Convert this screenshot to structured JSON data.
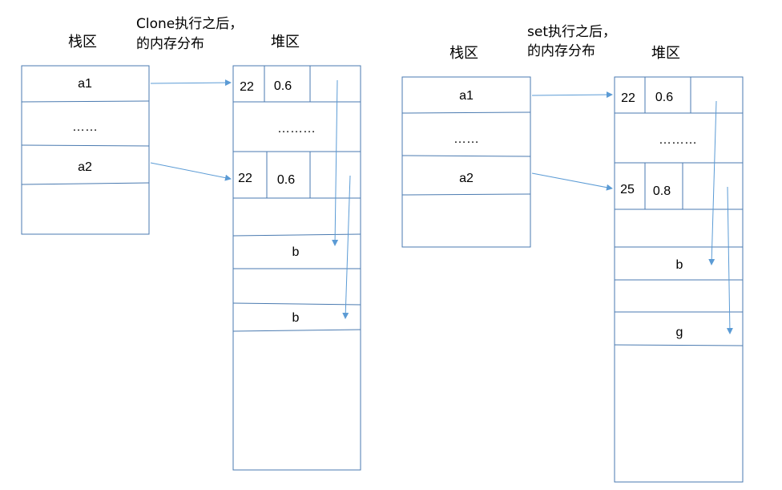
{
  "left": {
    "caption_line1": "Clone执行之后，",
    "caption_line2": "的内存分布",
    "stack_title": "栈区",
    "heap_title": "堆区",
    "stack_cells": [
      "a1",
      "……",
      "a2",
      ""
    ],
    "heap": {
      "obj1_age": "22",
      "obj1_score": "0.6",
      "ellipsis": "………",
      "obj2_age": "22",
      "obj2_score": "0.6",
      "str1": "b",
      "str2": "b"
    }
  },
  "right": {
    "caption_line1": "set执行之后，",
    "caption_line2": "的内存分布",
    "stack_title": "栈区",
    "heap_title": "堆区",
    "stack_cells": [
      "a1",
      "……",
      "a2",
      ""
    ],
    "heap": {
      "obj1_age": "22",
      "obj1_score": "0.6",
      "ellipsis": "………",
      "obj2_age": "25",
      "obj2_score": "0.8",
      "str1": "b",
      "str2": "g"
    }
  },
  "colors": {
    "border": "#4a7ab0",
    "arrow": "#5b9bd5",
    "text": "#000000"
  }
}
